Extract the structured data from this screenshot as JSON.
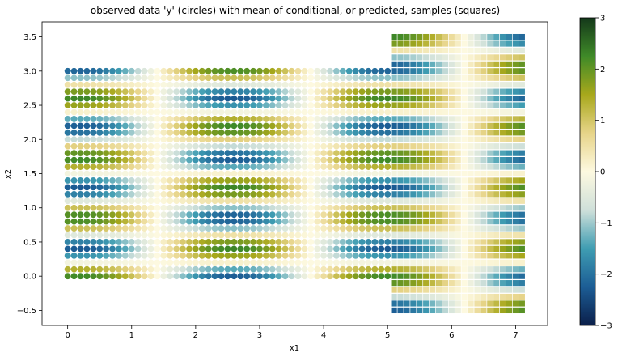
{
  "chart_data": {
    "type": "scatter",
    "title": "observed data 'y' (circles) with mean of conditional, or predicted, samples (squares)",
    "xlabel": "x1",
    "ylabel": "x2",
    "xlim": [
      -0.4,
      7.5
    ],
    "ylim": [
      -0.72,
      3.72
    ],
    "x_ticks": [
      "0",
      "1",
      "2",
      "3",
      "4",
      "5",
      "6",
      "7"
    ],
    "y_ticks": [
      "−0.5",
      "0.0",
      "0.5",
      "1.0",
      "1.5",
      "2.0",
      "2.5",
      "3.0",
      "3.5"
    ],
    "grid": false,
    "colorbar": {
      "colormap": "gist_earth-like (navy → teal → white → olive → dark green)",
      "range": [
        -3,
        3
      ],
      "ticks": [
        "−3",
        "−2",
        "−1",
        "0",
        "1",
        "2",
        "3"
      ]
    },
    "series": [
      {
        "marker": "circle",
        "x_range": [
          0,
          5
        ],
        "y_range": [
          0,
          3
        ],
        "spacing": 0.1
      },
      {
        "marker": "square",
        "x_range": [
          5.1,
          7.1
        ],
        "y_range": [
          -0.5,
          3.5
        ],
        "spacing": 0.1
      }
    ],
    "colors": {
      "stops": [
        "#0b1f4a",
        "#1c5d95",
        "#3f9db2",
        "#cfe0da",
        "#fdf9e0",
        "#e7d489",
        "#a8a81c",
        "#3f8a28",
        "#14381a"
      ]
    }
  }
}
